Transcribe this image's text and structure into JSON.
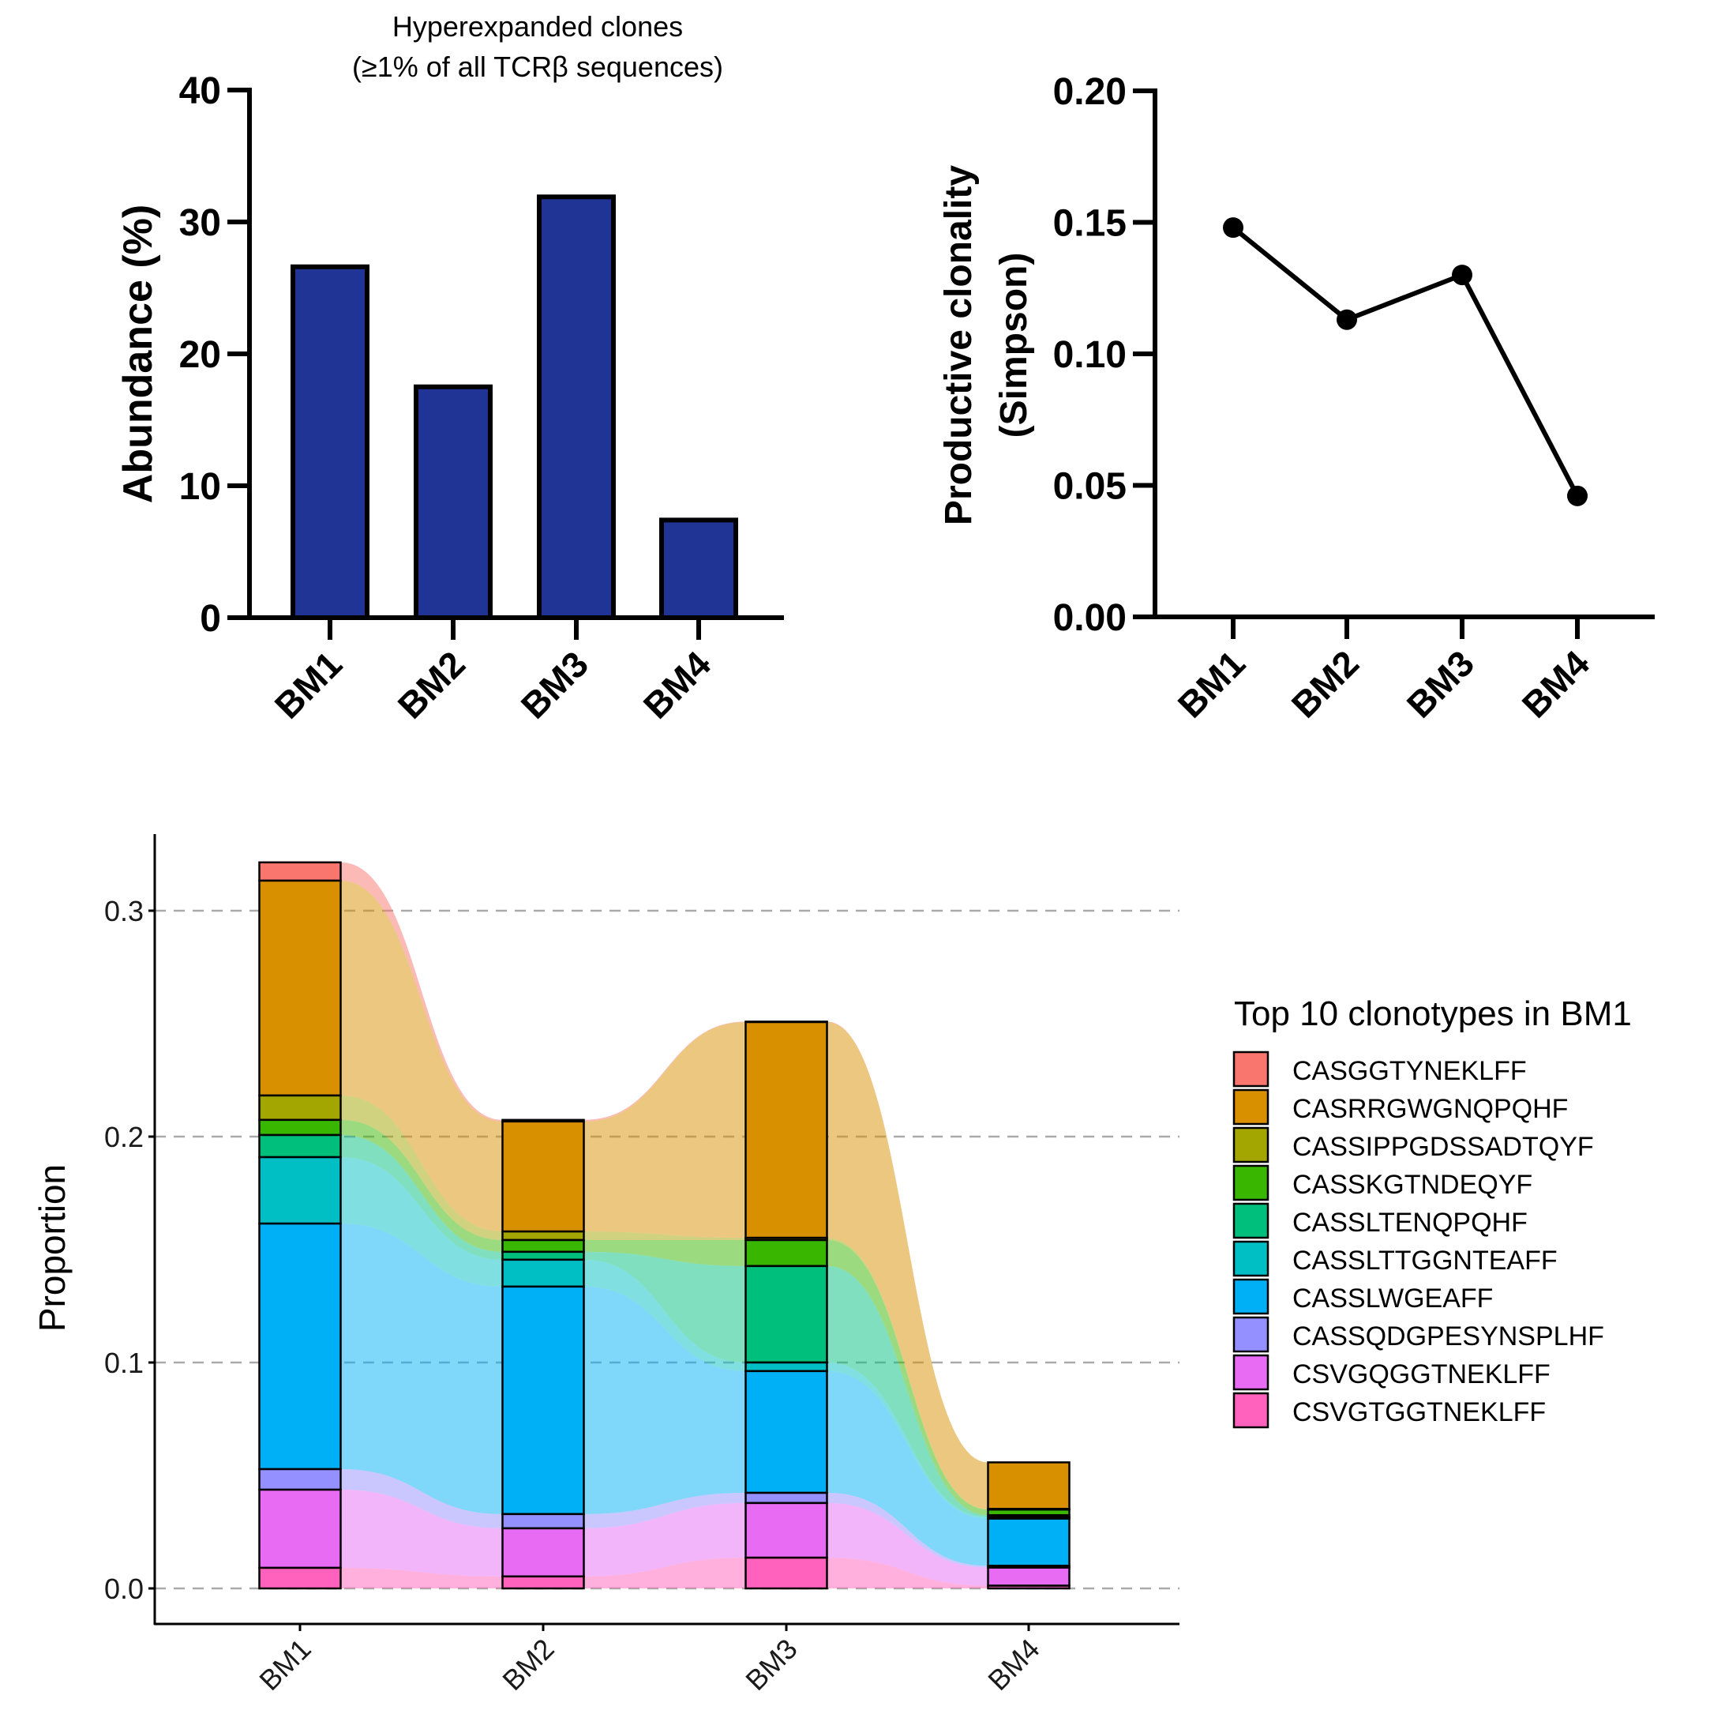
{
  "chart_data": [
    {
      "id": "abundance",
      "type": "bar",
      "title": [
        "Hyperexpanded clones",
        "(≥1% of all TCRβ sequences)"
      ],
      "xlabel": "",
      "ylabel": "Abundance (%)",
      "categories": [
        "BM1",
        "BM2",
        "BM3",
        "BM4"
      ],
      "values": [
        26.6,
        17.5,
        31.9,
        7.4
      ],
      "ylim": [
        0,
        40
      ],
      "yticks": [
        0,
        10,
        20,
        30,
        40
      ],
      "grid": false,
      "bar_color": "#1f3494"
    },
    {
      "id": "clonality",
      "type": "line",
      "title": "",
      "xlabel": "",
      "ylabel": [
        "Productive clonality",
        "(Simpson)"
      ],
      "categories": [
        "BM1",
        "BM2",
        "BM3",
        "BM4"
      ],
      "values": [
        0.148,
        0.113,
        0.13,
        0.046
      ],
      "ylim": [
        0,
        0.2
      ],
      "yticks": [
        "0.00",
        "0.05",
        "0.10",
        "0.15",
        "0.20"
      ],
      "grid": false,
      "line_color": "#000000"
    },
    {
      "id": "alluvial",
      "type": "bar",
      "subtype": "stacked alluvial",
      "title": "",
      "xlabel": "",
      "ylabel": "Proportion",
      "categories": [
        "BM1",
        "BM2",
        "BM3",
        "BM4"
      ],
      "ylim": [
        0,
        0.33
      ],
      "yticks": [
        "0.0",
        "0.1",
        "0.2",
        "0.3"
      ],
      "grid": true,
      "legend": {
        "title": "Top 10 clonotypes in BM1",
        "position": "right"
      },
      "series": [
        {
          "name": "CASGGTYNEKLFF",
          "color": "#f8766d",
          "values": [
            0.0081,
            0.0007,
            0.0002,
            0.0
          ]
        },
        {
          "name": "CASRRGWGNQPQHF",
          "color": "#d89000",
          "values": [
            0.0951,
            0.0487,
            0.0955,
            0.0206
          ]
        },
        {
          "name": "CASSIPPGDSSADTQYF",
          "color": "#a3a500",
          "values": [
            0.0108,
            0.0038,
            0.001,
            0.0003
          ]
        },
        {
          "name": "CASSKGTNDEQYF",
          "color": "#39b600",
          "values": [
            0.0067,
            0.0052,
            0.0115,
            0.0025
          ]
        },
        {
          "name": "CASSLTENQPQHF",
          "color": "#00bf7d",
          "values": [
            0.0098,
            0.0035,
            0.0427,
            0.0008
          ]
        },
        {
          "name": "CASSLTTGGNTEAFF",
          "color": "#00bfc4",
          "values": [
            0.0294,
            0.0119,
            0.0038,
            0.0007
          ]
        },
        {
          "name": "CASSLWGEAFF",
          "color": "#00b0f6",
          "values": [
            0.1087,
            0.1007,
            0.0539,
            0.0209
          ]
        },
        {
          "name": "CASSQDGPESYNSPLHF",
          "color": "#9590ff",
          "values": [
            0.0091,
            0.0063,
            0.0045,
            0.0008
          ]
        },
        {
          "name": "CSVGQGGTNEKLFF",
          "color": "#e76bf3",
          "values": [
            0.0346,
            0.0213,
            0.0242,
            0.008
          ]
        },
        {
          "name": "CSVGTGGTNEKLFF",
          "color": "#ff62bc",
          "values": [
            0.0091,
            0.0053,
            0.0136,
            0.0012
          ]
        }
      ]
    }
  ]
}
